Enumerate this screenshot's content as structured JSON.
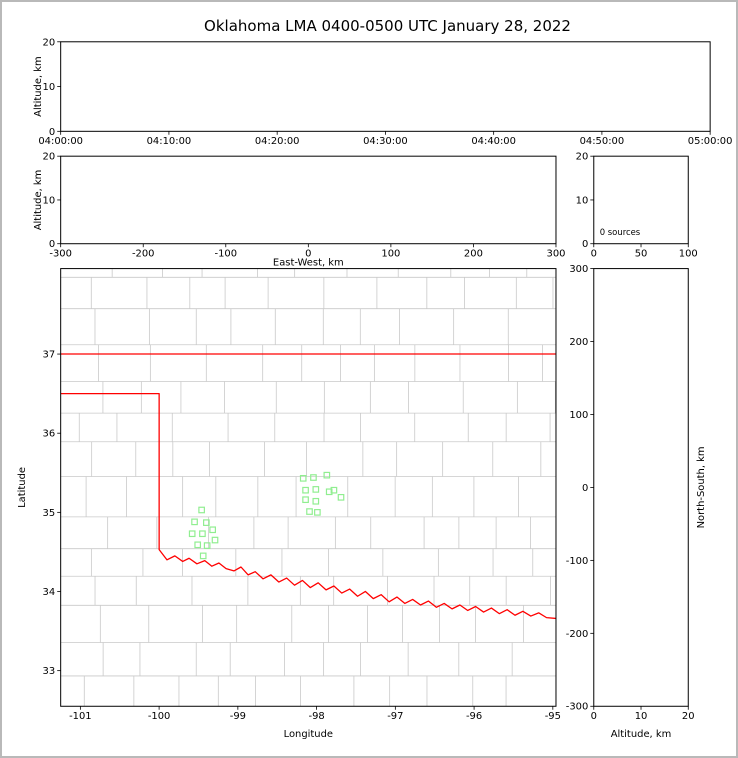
{
  "title": "Oklahoma LMA 0400-0500 UTC January 28, 2022",
  "colors": {
    "background": "#ffffff",
    "frame_border": "#b9b9b9",
    "axes": "#000000",
    "county_lines": "#c9c9c9",
    "state_border": "#ff0000",
    "station_marker": "#90ee90"
  },
  "county_grid": {
    "seed": 13,
    "row_min": 0.34,
    "row_var": 0.18,
    "col_min": 0.42,
    "col_var": 0.3
  },
  "chart_data": [
    {
      "id": "time_height",
      "type": "scatter",
      "title": "Oklahoma LMA 0400-0500 UTC January 28, 2022",
      "xlabel": "",
      "ylabel": "Altitude, km",
      "xlim": [
        0,
        3600
      ],
      "x_ticks": [
        0,
        600,
        1200,
        1800,
        2400,
        3000,
        3600
      ],
      "x_tick_labels": [
        "04:00:00",
        "04:10:00",
        "04:20:00",
        "04:30:00",
        "04:40:00",
        "04:50:00",
        "05:00:00"
      ],
      "ylim": [
        0,
        20
      ],
      "y_ticks": [
        0,
        10,
        20
      ],
      "grid": false,
      "points": []
    },
    {
      "id": "ew_height",
      "type": "scatter",
      "xlabel": "East-West, km",
      "ylabel": "Altitude, km",
      "xlim": [
        -300,
        300
      ],
      "x_ticks": [
        -300,
        -200,
        -100,
        0,
        100,
        200,
        300
      ],
      "ylim": [
        0,
        20
      ],
      "y_ticks": [
        0,
        10,
        20
      ],
      "grid": false,
      "points": []
    },
    {
      "id": "alt_hist",
      "type": "line",
      "xlabel": "",
      "ylabel": "",
      "xlim": [
        0,
        100
      ],
      "x_ticks": [
        0,
        50,
        100
      ],
      "ylim": [
        0,
        20
      ],
      "y_ticks": [
        0,
        10,
        20
      ],
      "annotation": "0 sources",
      "grid": false,
      "points": []
    },
    {
      "id": "plan_view",
      "type": "scatter",
      "xlabel": "Longitude",
      "ylabel": "Latitude",
      "xlim": [
        -101.25,
        -94.96
      ],
      "x_ticks": [
        -101,
        -100,
        -99,
        -98,
        -97,
        -96,
        -95
      ],
      "ylim": [
        32.55,
        38.08
      ],
      "y_ticks": [
        33,
        34,
        35,
        36,
        37
      ],
      "grid": false,
      "marker": "open-square",
      "state_border_lines": [
        [
          [
            -101.25,
            37.0
          ],
          [
            -94.96,
            37.0
          ]
        ],
        [
          [
            -101.25,
            36.5
          ],
          [
            -100.0,
            36.5
          ],
          [
            -100.0,
            34.53
          ],
          [
            -99.9,
            34.4
          ],
          [
            -99.8,
            34.45
          ],
          [
            -99.7,
            34.38
          ],
          [
            -99.62,
            34.42
          ],
          [
            -99.52,
            34.35
          ],
          [
            -99.42,
            34.39
          ],
          [
            -99.33,
            34.32
          ],
          [
            -99.24,
            34.36
          ],
          [
            -99.15,
            34.29
          ],
          [
            -99.05,
            34.26
          ],
          [
            -98.96,
            34.31
          ],
          [
            -98.87,
            34.21
          ],
          [
            -98.78,
            34.25
          ],
          [
            -98.68,
            34.16
          ],
          [
            -98.58,
            34.21
          ],
          [
            -98.48,
            34.12
          ],
          [
            -98.38,
            34.17
          ],
          [
            -98.28,
            34.08
          ],
          [
            -98.18,
            34.14
          ],
          [
            -98.08,
            34.05
          ],
          [
            -97.98,
            34.11
          ],
          [
            -97.88,
            34.02
          ],
          [
            -97.78,
            34.07
          ],
          [
            -97.68,
            33.98
          ],
          [
            -97.58,
            34.03
          ],
          [
            -97.48,
            33.94
          ],
          [
            -97.38,
            34.0
          ],
          [
            -97.28,
            33.91
          ],
          [
            -97.18,
            33.96
          ],
          [
            -97.08,
            33.87
          ],
          [
            -96.98,
            33.93
          ],
          [
            -96.88,
            33.85
          ],
          [
            -96.78,
            33.9
          ],
          [
            -96.68,
            33.83
          ],
          [
            -96.58,
            33.88
          ],
          [
            -96.48,
            33.8
          ],
          [
            -96.38,
            33.85
          ],
          [
            -96.28,
            33.78
          ],
          [
            -96.18,
            33.83
          ],
          [
            -96.08,
            33.76
          ],
          [
            -95.98,
            33.81
          ],
          [
            -95.88,
            33.74
          ],
          [
            -95.78,
            33.79
          ],
          [
            -95.68,
            33.72
          ],
          [
            -95.58,
            33.77
          ],
          [
            -95.48,
            33.7
          ],
          [
            -95.38,
            33.75
          ],
          [
            -95.28,
            33.69
          ],
          [
            -95.18,
            33.73
          ],
          [
            -95.08,
            33.67
          ],
          [
            -94.96,
            33.66
          ]
        ]
      ],
      "stations": [
        [
          -99.46,
          35.03
        ],
        [
          -99.55,
          34.88
        ],
        [
          -99.4,
          34.87
        ],
        [
          -99.58,
          34.73
        ],
        [
          -99.45,
          34.73
        ],
        [
          -99.32,
          34.78
        ],
        [
          -99.51,
          34.59
        ],
        [
          -99.39,
          34.58
        ],
        [
          -99.29,
          34.65
        ],
        [
          -99.44,
          34.45
        ],
        [
          -98.17,
          35.43
        ],
        [
          -98.04,
          35.44
        ],
        [
          -97.87,
          35.47
        ],
        [
          -98.14,
          35.28
        ],
        [
          -98.01,
          35.29
        ],
        [
          -97.84,
          35.26
        ],
        [
          -97.78,
          35.28
        ],
        [
          -97.69,
          35.19
        ],
        [
          -98.14,
          35.16
        ],
        [
          -98.01,
          35.14
        ],
        [
          -98.09,
          35.01
        ],
        [
          -97.99,
          35.0
        ]
      ]
    },
    {
      "id": "ns_height",
      "type": "scatter",
      "xlabel": "Altitude, km",
      "ylabel_right": "North-South, km",
      "xlim": [
        0,
        20
      ],
      "x_ticks": [
        0,
        10,
        20
      ],
      "ylim": [
        -300,
        300
      ],
      "y_ticks": [
        -300,
        -200,
        -100,
        0,
        100,
        200,
        300
      ],
      "grid": false,
      "points": []
    }
  ]
}
